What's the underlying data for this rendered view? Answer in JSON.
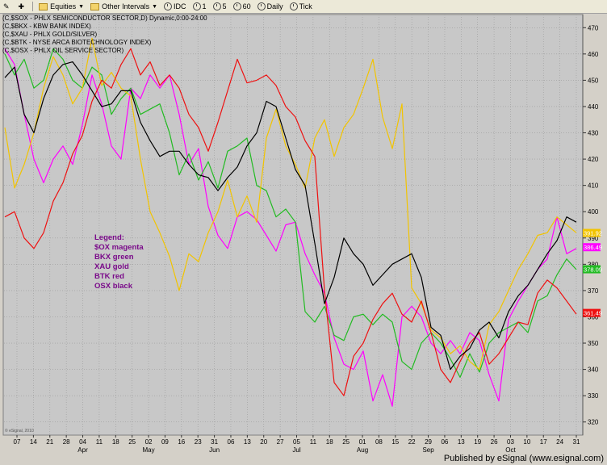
{
  "toolbar": {
    "items": [
      {
        "icon": "edit-icon",
        "label": ""
      },
      {
        "icon": "add-icon",
        "label": ""
      },
      {
        "icon": "folder-icon",
        "label": "Equities",
        "dropdown": true
      },
      {
        "icon": "folder-icon",
        "label": "Other Intervals",
        "dropdown": true
      },
      {
        "icon": "clock-icon",
        "label": "IDC"
      },
      {
        "icon": "clock-icon",
        "label": "1"
      },
      {
        "icon": "clock-icon",
        "label": "5"
      },
      {
        "icon": "clock-icon",
        "label": "60"
      },
      {
        "icon": "clock-icon",
        "label": "Daily"
      },
      {
        "icon": "clock-icon",
        "label": "Tick"
      }
    ]
  },
  "chart_data": {
    "type": "line",
    "header_lines": [
      "(C,$SOX - PHLX SEMICONDUCTOR SECTOR,D) Dynamic,0:00-24:00",
      "(C,$BKX - KBW BANK INDEX)",
      "(C,$XAU - PHLX GOLD/SILVER)",
      "(C,$BTK - NYSE ARCA BIOTECHNOLOGY INDEX)",
      "(C,$OSX - PHLX OIL SERVICE SECTOR)"
    ],
    "legend_text": [
      "Legend:",
      "$OX magenta",
      "BKX green",
      "XAU gold",
      "BTK red",
      "OSX black"
    ],
    "ylim": [
      315,
      475
    ],
    "y_ticks": [
      320,
      330,
      340,
      350,
      360,
      370,
      380,
      390,
      400,
      410,
      420,
      430,
      440,
      450,
      460,
      470
    ],
    "x_ticks": [
      "07",
      "14",
      "21",
      "28",
      "04",
      "11",
      "18",
      "25",
      "02",
      "09",
      "16",
      "23",
      "31",
      "06",
      "13",
      "20",
      "27",
      "05",
      "11",
      "18",
      "25",
      "01",
      "08",
      "15",
      "22",
      "29",
      "06",
      "13",
      "19",
      "26",
      "03",
      "10",
      "17",
      "24",
      "31"
    ],
    "month_labels": [
      {
        "label": "Apr",
        "at": 4
      },
      {
        "label": "May",
        "at": 8
      },
      {
        "label": "Jun",
        "at": 12
      },
      {
        "label": "Jul",
        "at": 17
      },
      {
        "label": "Aug",
        "at": 21
      },
      {
        "label": "Sep",
        "at": 25
      },
      {
        "label": "Oct",
        "at": 30
      }
    ],
    "grid": true,
    "series": [
      {
        "color": "#ff00ff",
        "last": "386.49",
        "values": [
          462,
          456,
          437,
          420,
          411,
          420,
          425,
          418,
          433,
          452,
          441,
          425,
          420,
          447,
          443,
          452,
          447,
          452,
          437,
          418,
          424,
          402,
          391,
          386,
          398,
          400,
          397,
          391,
          385,
          395,
          396,
          384,
          376,
          369,
          352,
          342,
          340,
          347,
          328,
          338,
          326,
          360,
          364,
          360,
          350,
          346,
          351,
          346,
          354,
          351,
          338,
          328,
          359,
          366,
          372,
          378,
          382,
          398,
          384,
          386
        ]
      },
      {
        "color": "#22bb22",
        "last": "378.09",
        "values": [
          460,
          452,
          458,
          447,
          450,
          462,
          458,
          450,
          447,
          455,
          452,
          437,
          443,
          447,
          437,
          439,
          441,
          430,
          414,
          422,
          412,
          419,
          409,
          423,
          425,
          428,
          410,
          408,
          398,
          401,
          396,
          362,
          358,
          364,
          353,
          351,
          360,
          361,
          357,
          361,
          358,
          343,
          340,
          350,
          354,
          350,
          344,
          337,
          346,
          339,
          350,
          354,
          356,
          358,
          354,
          366,
          368,
          376,
          382,
          378
        ]
      },
      {
        "color": "#f2c400",
        "last": "391.92",
        "values": [
          432,
          409,
          418,
          430,
          447,
          459,
          452,
          441,
          447,
          466,
          448,
          453,
          447,
          444,
          420,
          400,
          392,
          383,
          370,
          384,
          381,
          392,
          400,
          412,
          398,
          406,
          396,
          428,
          439,
          425,
          418,
          409,
          428,
          435,
          421,
          432,
          437,
          447,
          458,
          436,
          424,
          441,
          371,
          365,
          355,
          352,
          346,
          349,
          343,
          340,
          357,
          362,
          370,
          378,
          384,
          391,
          392,
          398,
          395,
          392
        ]
      },
      {
        "color": "#ee1111",
        "last": "361.49",
        "values": [
          398,
          400,
          390,
          386,
          392,
          404,
          411,
          422,
          429,
          442,
          450,
          447,
          456,
          462,
          452,
          457,
          448,
          452,
          447,
          437,
          432,
          423,
          434,
          446,
          458,
          449,
          450,
          452,
          448,
          440,
          436,
          427,
          421,
          370,
          335,
          330,
          345,
          350,
          359,
          365,
          369,
          361,
          358,
          366,
          354,
          340,
          335,
          343,
          350,
          354,
          342,
          346,
          352,
          358,
          357,
          369,
          374,
          371,
          366,
          361
        ]
      },
      {
        "color": "#000000",
        "last": "",
        "values": [
          451,
          455,
          437,
          430,
          443,
          452,
          456,
          457,
          452,
          446,
          440,
          441,
          446,
          446,
          434,
          427,
          421,
          423,
          423,
          418,
          414,
          413,
          408,
          413,
          417,
          425,
          430,
          442,
          440,
          428,
          416,
          410,
          388,
          365,
          375,
          390,
          384,
          380,
          372,
          376,
          380,
          382,
          384,
          375,
          356,
          353,
          340,
          345,
          348,
          355,
          358,
          352,
          362,
          368,
          372,
          378,
          384,
          389,
          398,
          396
        ]
      }
    ]
  },
  "footer": {
    "left": "© eSignal, 2010",
    "right": "Published by eSignal (www.esignal.com)"
  }
}
